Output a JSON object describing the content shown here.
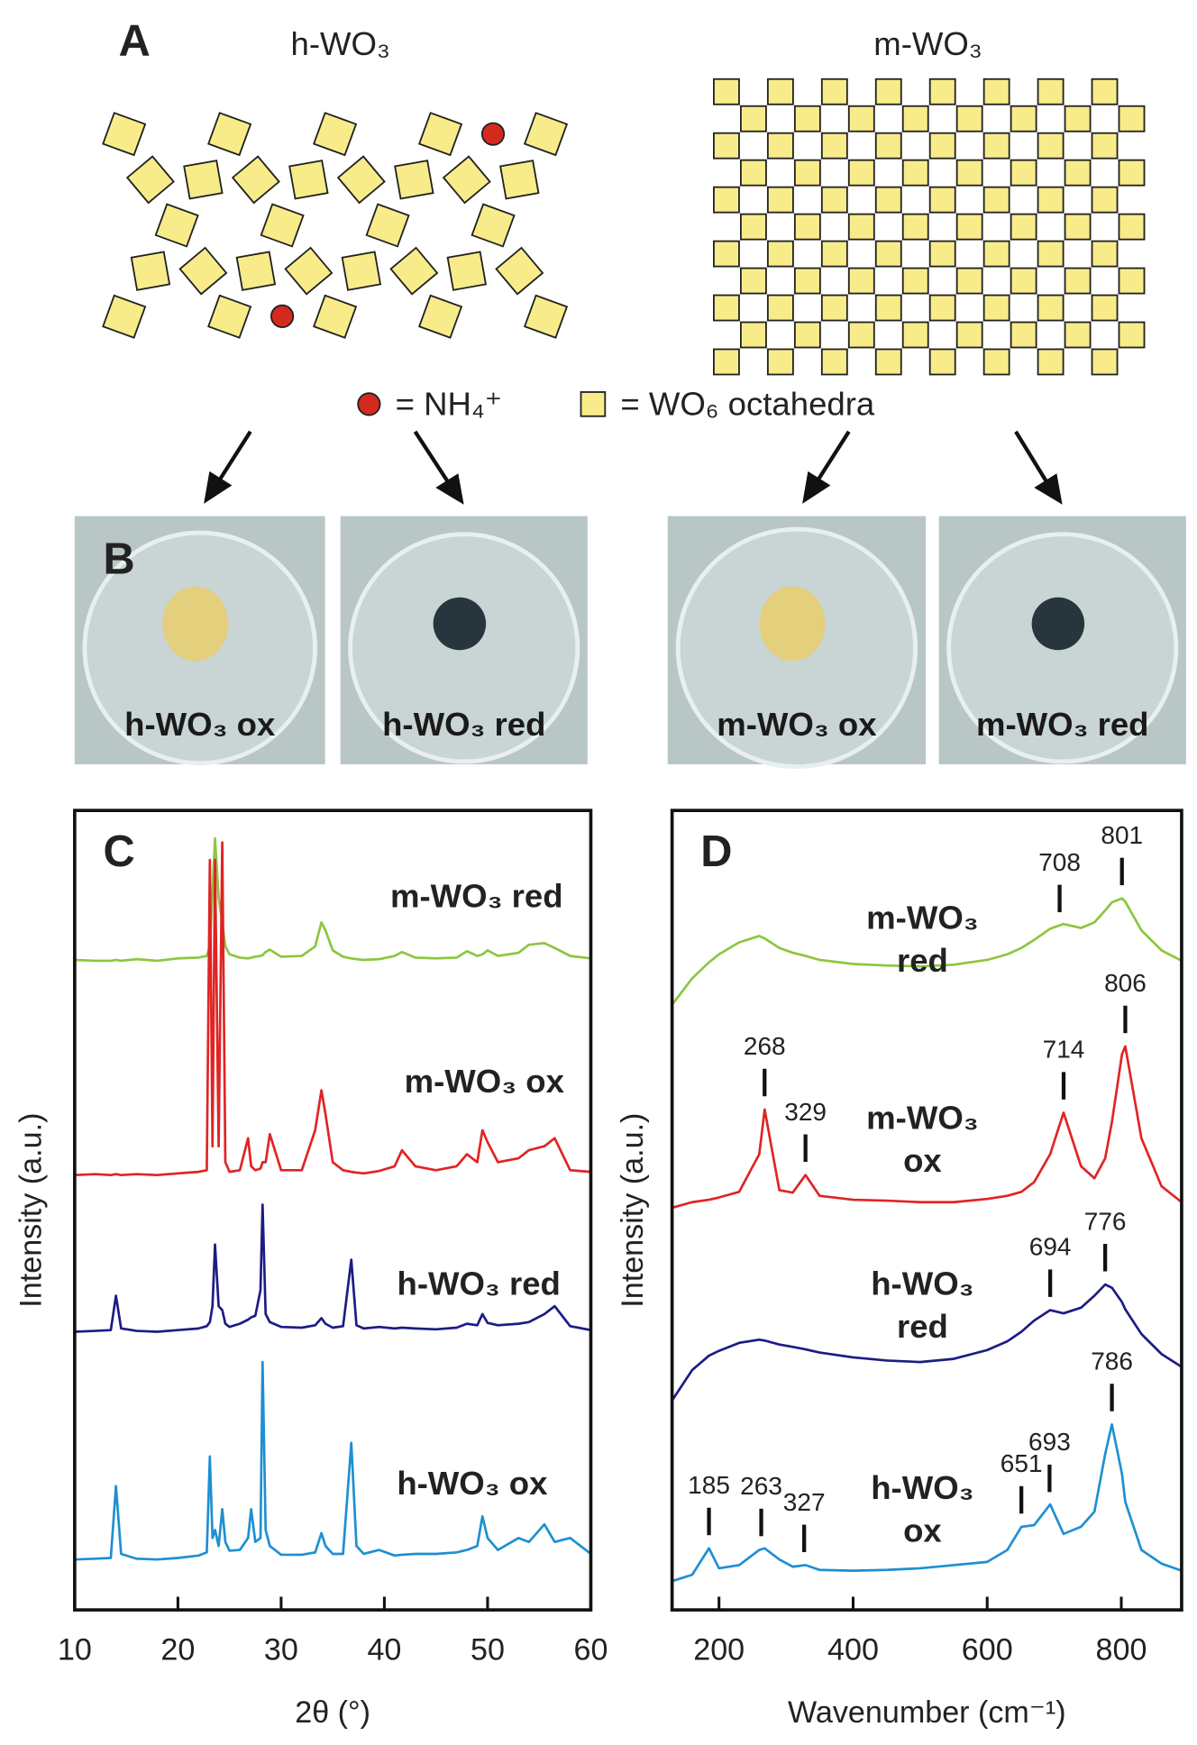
{
  "panel_a": {
    "label": "A",
    "titles": [
      "h-WO₃",
      "m-WO₃"
    ],
    "legend": [
      "= NH₄⁺",
      "= WO₆ octahedra"
    ]
  },
  "panel_b": {
    "label": "B",
    "photos": [
      "h-WO₃ ox",
      "h-WO₃ red",
      "m-WO₃ ox",
      "m-WO₃ red"
    ]
  },
  "chart_data": [
    {
      "type": "line",
      "panel_label": "C",
      "xlabel": "2θ (°)",
      "ylabel": "Intensity (a.u.)",
      "x": [
        10,
        12,
        13.5,
        14,
        14.5,
        16,
        18,
        20,
        22,
        22.8,
        23.1,
        23.35,
        23.6,
        23.95,
        24.3,
        24.6,
        25,
        26,
        26.8,
        27.1,
        27.5,
        28,
        28.2,
        28.5,
        28.9,
        30,
        32,
        33.3,
        33.9,
        34.3,
        35,
        36,
        36.8,
        37.3,
        38,
        39.5,
        41,
        41.7,
        43,
        45,
        47,
        48,
        49,
        49.5,
        50,
        51,
        53,
        54,
        55.5,
        56.5,
        58,
        60
      ],
      "xlim": [
        10,
        60
      ],
      "xticks": [
        10,
        20,
        30,
        40,
        50,
        60
      ],
      "ylim": [
        0,
        100
      ],
      "series": [
        {
          "name": "m-WO₃ red",
          "color": "#8cc63f",
          "values": [
            81.3,
            81.2,
            81.2,
            81.3,
            81.2,
            81.4,
            81.2,
            81.5,
            81.6,
            81.8,
            83,
            90,
            96.5,
            89,
            86,
            83,
            82,
            81.6,
            81.5,
            81.6,
            81.7,
            81.8,
            81.9,
            82.3,
            82.6,
            81.7,
            81.8,
            83,
            86,
            85,
            82.5,
            81.7,
            81.5,
            81.4,
            81.3,
            81.4,
            81.8,
            82.3,
            81.6,
            81.5,
            81.6,
            82.4,
            81.8,
            82,
            82.5,
            81.8,
            82.2,
            83.2,
            83.4,
            82.8,
            81.8,
            81.5
          ]
        },
        {
          "name": "m-WO₃ ox",
          "color": "#e02424",
          "values": [
            54.4,
            54.5,
            54.4,
            54.5,
            54.4,
            54.5,
            54.4,
            54.6,
            54.8,
            55,
            93.8,
            58,
            93.8,
            58,
            96,
            56,
            54.8,
            55,
            59,
            55.5,
            55,
            55.2,
            56,
            56,
            59.5,
            55,
            55,
            60,
            65,
            62,
            56,
            55,
            54.8,
            54.7,
            54.6,
            54.9,
            55.5,
            57.5,
            55.5,
            55,
            55.5,
            57,
            56,
            60,
            58.5,
            56,
            56.5,
            57.5,
            58,
            59,
            55,
            54.8
          ]
        },
        {
          "name": "h-WO₃ red",
          "color": "#1c1c84",
          "values": [
            34.8,
            34.9,
            35,
            39.3,
            35.2,
            34.9,
            34.8,
            35,
            35.2,
            35.5,
            36,
            38,
            45.7,
            38,
            37.5,
            35.8,
            35.4,
            35.8,
            36.3,
            36.6,
            36.8,
            40,
            50.7,
            37,
            36,
            35.4,
            35.3,
            35.6,
            36.5,
            35.8,
            35.3,
            35.5,
            43.8,
            35.6,
            35.2,
            35.4,
            35.2,
            35.3,
            35.2,
            35.1,
            35.3,
            35.8,
            35.6,
            37,
            35.9,
            35.6,
            35.8,
            36,
            37,
            38,
            35.5,
            35
          ]
        },
        {
          "name": "h-WO₃ ox",
          "color": "#1e8fd2",
          "values": [
            6.3,
            6.4,
            6.5,
            15.5,
            7,
            6.4,
            6.3,
            6.5,
            6.8,
            7.2,
            19.2,
            9,
            10,
            8,
            12.6,
            8.5,
            7.4,
            7.5,
            9,
            12.6,
            8.5,
            9,
            31,
            10,
            8,
            6.9,
            6.9,
            7.2,
            9.6,
            8,
            7,
            7,
            20.9,
            8,
            7,
            7.5,
            6.8,
            6.9,
            7,
            7,
            7.2,
            7.5,
            8,
            11.7,
            9,
            7.5,
            9,
            8.5,
            10.7,
            8.5,
            9,
            7
          ]
        }
      ]
    },
    {
      "type": "line",
      "panel_label": "D",
      "xlabel": "Wavenumber (cm⁻¹)",
      "ylabel": "Intensity (a.u.)",
      "x": [
        130,
        160,
        185,
        200,
        230,
        260,
        268,
        290,
        310,
        329,
        350,
        400,
        450,
        500,
        550,
        600,
        630,
        651,
        670,
        694,
        714,
        740,
        760,
        776,
        786,
        801,
        806,
        830,
        860,
        890
      ],
      "xlim": [
        130,
        890
      ],
      "xticks": [
        200,
        400,
        600,
        800
      ],
      "ylim": [
        0,
        100
      ],
      "series": [
        {
          "name_lines": [
            "m-WO₃",
            "red"
          ],
          "color": "#8cc63f",
          "peaks": [
            708,
            801
          ],
          "values": [
            75.7,
            79,
            81,
            82,
            83.5,
            84.3,
            84,
            82.8,
            82.2,
            81.8,
            81.3,
            80.8,
            80.6,
            80.5,
            80.7,
            81.3,
            82,
            82.8,
            83.8,
            85.2,
            85.8,
            85.3,
            86,
            87.5,
            88.5,
            89,
            88.6,
            85,
            82.5,
            81.2
          ]
        },
        {
          "name_lines": [
            "m-WO₃",
            "ox"
          ],
          "color": "#e02424",
          "peaks": [
            268,
            329,
            714,
            806
          ],
          "values": [
            50.3,
            51,
            51.3,
            51.6,
            52.3,
            57,
            62.6,
            52.5,
            52.2,
            54.4,
            51.8,
            51.3,
            51.2,
            51,
            51,
            51.4,
            51.8,
            52.3,
            53.5,
            57,
            62.2,
            55.5,
            54,
            56.5,
            61,
            69.5,
            70.5,
            59,
            53,
            51
          ]
        },
        {
          "name_lines": [
            "h-WO₃",
            "red"
          ],
          "color": "#1c1c84",
          "peaks": [
            694,
            776
          ],
          "values": [
            26.2,
            30,
            31.8,
            32.4,
            33.4,
            33.8,
            33.7,
            33.2,
            32.9,
            32.6,
            32.2,
            31.6,
            31.2,
            31,
            31.4,
            32.5,
            33.6,
            34.8,
            36.2,
            37.5,
            37.1,
            37.8,
            39.3,
            40.7,
            40.3,
            38.5,
            37.6,
            34.5,
            32,
            30.4
          ]
        },
        {
          "name_lines": [
            "h-WO₃",
            "ox"
          ],
          "color": "#1e8fd2",
          "peaks": [
            185,
            263,
            327,
            651,
            693,
            786
          ],
          "values": [
            3.6,
            4.4,
            7.7,
            5.2,
            5.6,
            7.5,
            7.7,
            6.3,
            5.4,
            5.6,
            5,
            4.9,
            5,
            5.2,
            5.6,
            6,
            7.5,
            10.4,
            10.6,
            13.2,
            9.5,
            10.4,
            12.3,
            19.5,
            23.2,
            17,
            13.5,
            7.5,
            5.8,
            4.9
          ]
        }
      ]
    }
  ]
}
